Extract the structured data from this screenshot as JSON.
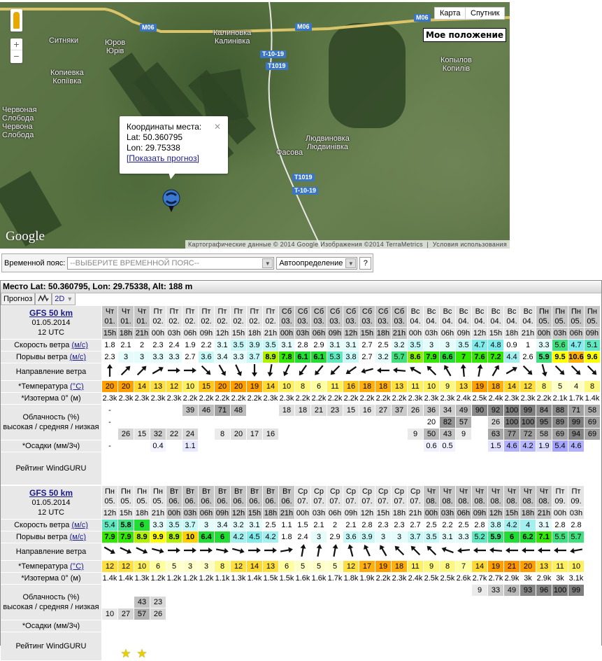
{
  "map": {
    "type_buttons": [
      "Карта",
      "Спутник"
    ],
    "my_position": "Мое положение",
    "zoom_in": "+",
    "zoom_out": "−",
    "labels": [
      "Ситняки",
      "Юров",
      "Юрів",
      "Калиновка",
      "Калинівка",
      "Копиевка",
      "Копіївка",
      "Червоная",
      "Слобода",
      "Червона",
      "Слобода",
      "Копылов",
      "Копилів",
      "Людвиновка",
      "Людвинівка",
      "Фасова"
    ],
    "road_shields": [
      "M06",
      "M06",
      "M06",
      "T-10-19",
      "T1019",
      "T1019",
      "T-10-19"
    ],
    "popup": {
      "title": "Координаты места:",
      "lat": "Lat: 50.360795",
      "lon": "Lon: 29.75338",
      "link": "[Показать прогноз]",
      "close": "✕"
    },
    "logo": "Google",
    "attribution": "Картографические данные © 2014 Google Изображения ©2014 TerraMetrics",
    "terms": "Условия использования"
  },
  "timezone": {
    "label": "Временной пояс:",
    "placeholder": "--ВЫБЕРИТЕ ВРЕМЕННОЙ ПОЯС--",
    "auto": "Автоопределение",
    "help": "?"
  },
  "panel": {
    "title": "Место Lat: 50.360795, Lon: 29.75338, Alt: 188 m",
    "tab_forecast": "Прогноз",
    "tab_2d": "2D"
  },
  "row_labels": {
    "speed": "Скорость ветра ",
    "gust": "Порывы ветра ",
    "unit_ms": "(м/с)",
    "dir": "Направление ветра",
    "temp": "*Температура ",
    "unit_c": "(°C)",
    "iso": "*Изотерма 0° (м)",
    "cloud1": "Облачность (%)",
    "cloud2": "высокая / средняя / низкая",
    "precip": "*Осадки (мм/3ч)",
    "rating": "Рейтинг WindGURU"
  },
  "tables": [
    {
      "model": "GFS 50 km",
      "date": "01.05.2014",
      "run": "12 UTC",
      "days": [
        "Чт",
        "Чт",
        "Чт",
        "Пт",
        "Пт",
        "Пт",
        "Пт",
        "Пт",
        "Пт",
        "Пт",
        "Пт",
        "Сб",
        "Сб",
        "Сб",
        "Сб",
        "Сб",
        "Сб",
        "Сб",
        "Сб",
        "Вс",
        "Вс",
        "Вс",
        "Вс",
        "Вс",
        "Вс",
        "Вс",
        "Вс",
        "Пн",
        "Пн",
        "Пн",
        "Пн"
      ],
      "dates": [
        "01.",
        "01.",
        "01.",
        "02.",
        "02.",
        "02.",
        "02.",
        "02.",
        "02.",
        "02.",
        "02.",
        "03.",
        "03.",
        "03.",
        "03.",
        "03.",
        "03.",
        "03.",
        "03.",
        "04.",
        "04.",
        "04.",
        "04.",
        "04.",
        "04.",
        "04.",
        "04.",
        "05.",
        "05.",
        "05.",
        "05."
      ],
      "hours": [
        "15h",
        "18h",
        "21h",
        "00h",
        "03h",
        "06h",
        "09h",
        "12h",
        "15h",
        "18h",
        "21h",
        "00h",
        "03h",
        "06h",
        "09h",
        "12h",
        "15h",
        "18h",
        "21h",
        "00h",
        "03h",
        "06h",
        "09h",
        "12h",
        "15h",
        "18h",
        "21h",
        "00h",
        "03h",
        "06h",
        "09h"
      ],
      "speed": [
        1.8,
        2.1,
        2,
        2.3,
        2.4,
        1.9,
        2.2,
        3.1,
        3.5,
        3.9,
        3.5,
        3.1,
        2.8,
        2.9,
        3.1,
        3.1,
        2.7,
        2.5,
        3.2,
        3.5,
        3,
        3,
        3.5,
        4.7,
        4.8,
        0.9,
        1,
        3.3,
        5.6,
        4.7,
        5.1
      ],
      "gust": [
        2.3,
        3,
        3,
        3.3,
        3.3,
        2.7,
        3.6,
        3.4,
        3.3,
        3.7,
        8.9,
        7.8,
        6.1,
        6.1,
        5.3,
        3.8,
        2.7,
        3.2,
        5.7,
        8.6,
        7.9,
        6.6,
        7,
        7.6,
        7.2,
        4.4,
        2.6,
        5.9,
        9.5,
        10.6,
        9.6
      ],
      "arrow_heading_deg": [
        0,
        45,
        45,
        60,
        90,
        90,
        135,
        150,
        155,
        180,
        190,
        205,
        215,
        220,
        225,
        235,
        255,
        270,
        275,
        300,
        315,
        330,
        355,
        10,
        30,
        60,
        135,
        165,
        135,
        135,
        135
      ],
      "temp": [
        20,
        20,
        14,
        13,
        12,
        10,
        15,
        20,
        20,
        19,
        14,
        10,
        8,
        6,
        11,
        16,
        18,
        18,
        13,
        11,
        10,
        9,
        13,
        19,
        18,
        14,
        12,
        8,
        5,
        4,
        8
      ],
      "iso": [
        "2.3k",
        "2.3k",
        "2.3k",
        "2.3k",
        "2.3k",
        "2.2k",
        "2.2k",
        "2.2k",
        "2.2k",
        "2.2k",
        "2.3k",
        "2.3k",
        "2.2k",
        "2.2k",
        "2.2k",
        "2.2k",
        "2.2k",
        "2.2k",
        "2.2k",
        "2.3k",
        "2.3k",
        "2.3k",
        "2.4k",
        "2.5k",
        "2.4k",
        "2.3k",
        "2.3k",
        "2.2k",
        "2.1k",
        "1.7k",
        "1.4k"
      ],
      "cloud_high": [
        "-",
        "",
        "",
        "",
        "",
        39,
        46,
        71,
        48,
        "",
        "",
        18,
        18,
        21,
        23,
        15,
        16,
        27,
        37,
        26,
        36,
        34,
        49,
        90,
        92,
        100,
        99,
        84,
        88,
        71,
        58
      ],
      "cloud_mid": [
        "-",
        "",
        "",
        "",
        "",
        "",
        "",
        "",
        "",
        "",
        "",
        "",
        "",
        "",
        "",
        "",
        "",
        "",
        "",
        "",
        "20",
        82,
        57,
        "",
        26,
        100,
        100,
        95,
        89,
        99,
        69
      ],
      "cloud_low": [
        "",
        26,
        15,
        32,
        22,
        24,
        "",
        8,
        20,
        17,
        16,
        "",
        "",
        "",
        "",
        "",
        "",
        "",
        "",
        9,
        50,
        43,
        9,
        "",
        63,
        77,
        72,
        58,
        69,
        94,
        69
      ],
      "precip": [
        "-",
        "",
        "",
        0.4,
        "",
        1.1,
        "",
        "",
        "",
        "",
        "",
        "",
        "",
        "",
        "",
        "",
        "",
        "",
        "",
        "",
        0.6,
        0.5,
        "",
        "",
        1.5,
        4.6,
        4.2,
        1.9,
        5.4,
        4.6,
        ""
      ],
      "rating": [
        0,
        0,
        0,
        0,
        0,
        0,
        0,
        0,
        0,
        0,
        0,
        0,
        0,
        0,
        0,
        0,
        0,
        0,
        0,
        0,
        0,
        0,
        0,
        0,
        0,
        0,
        0,
        0,
        0,
        0,
        0
      ]
    },
    {
      "model": "GFS 50 km",
      "date": "01.05.2014",
      "run": "12 UTC",
      "days": [
        "Пн",
        "Пн",
        "Пн",
        "Пн",
        "Вт",
        "Вт",
        "Вт",
        "Вт",
        "Вт",
        "Вт",
        "Вт",
        "Вт",
        "Ср",
        "Ср",
        "Ср",
        "Ср",
        "Ср",
        "Ср",
        "Ср",
        "Ср",
        "Чт",
        "Чт",
        "Чт",
        "Чт",
        "Чт",
        "Чт",
        "Чт",
        "Чт",
        "Пт",
        "Пт"
      ],
      "dates": [
        "05.",
        "05.",
        "05.",
        "05.",
        "06.",
        "06.",
        "06.",
        "06.",
        "06.",
        "06.",
        "06.",
        "06.",
        "07.",
        "07.",
        "07.",
        "07.",
        "07.",
        "07.",
        "07.",
        "07.",
        "08.",
        "08.",
        "08.",
        "08.",
        "08.",
        "08.",
        "08.",
        "08.",
        "09.",
        "09."
      ],
      "hours": [
        "12h",
        "15h",
        "18h",
        "21h",
        "00h",
        "03h",
        "06h",
        "09h",
        "12h",
        "15h",
        "18h",
        "21h",
        "00h",
        "03h",
        "06h",
        "09h",
        "12h",
        "15h",
        "18h",
        "21h",
        "00h",
        "03h",
        "06h",
        "09h",
        "12h",
        "15h",
        "18h",
        "21h",
        "00h",
        "03h"
      ],
      "speed": [
        5.4,
        5.8,
        6,
        3.3,
        3.5,
        3.7,
        3,
        3.4,
        3.2,
        3.1,
        2.5,
        1.1,
        1.5,
        2.1,
        2,
        2.1,
        2.8,
        2.3,
        2.3,
        2.7,
        2.5,
        2.2,
        2.5,
        2.8,
        3.8,
        4.2,
        4,
        3.1,
        2.8,
        2.8
      ],
      "gust": [
        7.9,
        7.9,
        8.9,
        9.9,
        8.9,
        10,
        6.4,
        6,
        4.2,
        4.5,
        4.2,
        1.8,
        2.4,
        3,
        2.9,
        3.6,
        3.9,
        3,
        3,
        3.7,
        3.5,
        3.1,
        3.3,
        5.2,
        5.9,
        6,
        6.2,
        7.1,
        5.5,
        5.7
      ],
      "arrow_heading_deg": [
        120,
        115,
        115,
        105,
        90,
        90,
        90,
        100,
        105,
        90,
        90,
        80,
        10,
        10,
        10,
        345,
        335,
        330,
        315,
        315,
        315,
        290,
        265,
        270,
        275,
        270,
        270,
        270,
        270,
        260
      ],
      "temp": [
        12,
        12,
        10,
        6,
        5,
        3,
        3,
        8,
        12,
        14,
        13,
        6,
        5,
        5,
        5,
        12,
        17,
        19,
        18,
        11,
        9,
        8,
        7,
        14,
        19,
        21,
        20,
        13,
        11,
        10
      ],
      "iso": [
        "1.4k",
        "1.4k",
        "1.3k",
        "1.2k",
        "1.2k",
        "1.2k",
        "1.2k",
        "1.1k",
        "1.3k",
        "1.4k",
        "1.5k",
        "1.5k",
        "1.6k",
        "1.6k",
        "1.7k",
        "1.8k",
        "1.9k",
        "2.2k",
        "2.3k",
        "2.4k",
        "2.5k",
        "2.5k",
        "2.6k",
        "2.7k",
        "2.7k",
        "2.9k",
        "3k",
        "2.9k",
        "3k",
        "3.1k"
      ],
      "cloud_high": [
        "",
        "",
        "",
        "",
        "",
        "",
        "",
        "",
        "",
        "",
        "",
        "",
        "",
        "",
        "",
        "",
        "",
        "",
        "",
        "",
        "",
        "",
        "",
        9,
        33,
        49,
        93,
        96,
        100,
        99
      ],
      "cloud_mid": [
        "",
        "",
        43,
        23,
        "",
        "",
        "",
        "",
        "",
        "",
        "",
        "",
        "",
        "",
        "",
        "",
        "",
        "",
        "",
        "",
        "",
        "",
        "",
        "",
        "",
        "",
        "",
        "",
        "",
        ""
      ],
      "cloud_low": [
        10,
        27,
        57,
        26,
        "",
        "",
        "",
        "",
        "",
        "",
        "",
        "",
        "",
        "",
        "",
        "",
        "",
        "",
        "",
        "",
        "",
        "",
        "",
        "",
        "",
        "",
        "",
        "",
        "",
        ""
      ],
      "precip": [
        "",
        "",
        "",
        "",
        "",
        "",
        "",
        "",
        "",
        "",
        "",
        "",
        "",
        "",
        "",
        "",
        "",
        "",
        "",
        "",
        "",
        "",
        "",
        "",
        "",
        "",
        "",
        "",
        "",
        ""
      ],
      "rating": [
        0,
        1,
        1,
        0,
        0,
        0,
        0,
        0,
        0,
        0,
        0,
        0,
        0,
        0,
        0,
        0,
        0,
        0,
        0,
        0,
        0,
        0,
        0,
        0,
        0,
        0,
        0,
        0,
        0,
        0
      ]
    }
  ]
}
